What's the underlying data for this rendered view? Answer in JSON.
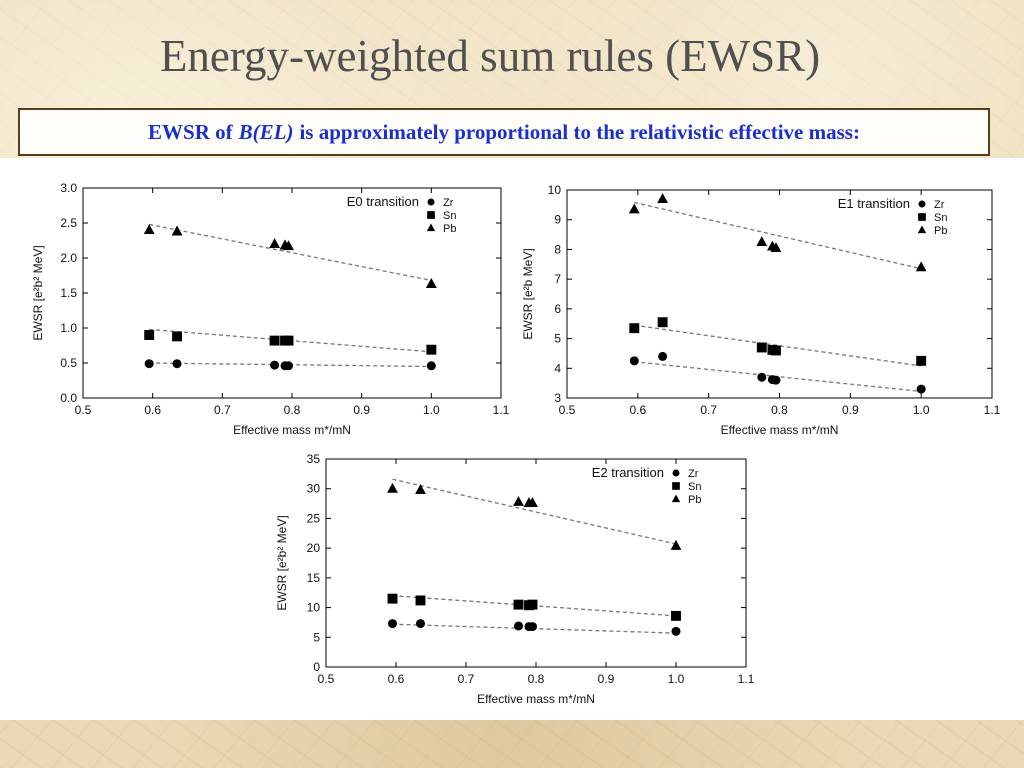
{
  "slide": {
    "title": "Energy-weighted sum rules (EWSR)",
    "subtitle_pre": "EWSR of",
    "subtitle_italic": "B(EL)",
    "subtitle_post": "is approximately proportional to the relativistic effective mass:",
    "subtitle_color": "#1a2fd0"
  },
  "chart_data": [
    {
      "type": "scatter",
      "annotation": "E0 transition",
      "xlabel": "Effective mass m*/mN",
      "ylabel": "EWSR [e²b² MeV]",
      "xlim": [
        0.5,
        1.1
      ],
      "ylim": [
        0,
        3.0
      ],
      "xticks": [
        0.5,
        0.6,
        0.7,
        0.8,
        0.9,
        1.0,
        1.1
      ],
      "yticks": [
        0.0,
        0.5,
        1.0,
        1.5,
        2.0,
        2.5,
        3.0
      ],
      "tick_decimals": 1,
      "grid": false,
      "legend": "top-right",
      "series": [
        {
          "name": "Zr",
          "marker": "circle",
          "x": [
            0.595,
            0.635,
            0.775,
            0.79,
            0.795,
            1.0
          ],
          "y": [
            0.49,
            0.49,
            0.47,
            0.46,
            0.46,
            0.46
          ],
          "fit": [
            [
              0.595,
              0.5
            ],
            [
              1.0,
              0.45
            ]
          ]
        },
        {
          "name": "Sn",
          "marker": "square",
          "x": [
            0.595,
            0.635,
            0.775,
            0.79,
            0.795,
            1.0
          ],
          "y": [
            0.9,
            0.88,
            0.82,
            0.82,
            0.82,
            0.69
          ],
          "fit": [
            [
              0.595,
              0.98
            ],
            [
              1.0,
              0.66
            ]
          ]
        },
        {
          "name": "Pb",
          "marker": "triangle",
          "x": [
            0.595,
            0.635,
            0.775,
            0.79,
            0.795,
            1.0
          ],
          "y": [
            2.4,
            2.38,
            2.2,
            2.18,
            2.17,
            1.63
          ],
          "fit": [
            [
              0.595,
              2.48
            ],
            [
              1.0,
              1.68
            ]
          ]
        }
      ]
    },
    {
      "type": "scatter",
      "annotation": "E1 transition",
      "xlabel": "Effective mass m*/mN",
      "ylabel": "EWSR [e²b MeV]",
      "xlim": [
        0.5,
        1.1
      ],
      "ylim": [
        3,
        10
      ],
      "xticks": [
        0.5,
        0.6,
        0.7,
        0.8,
        0.9,
        1.0,
        1.1
      ],
      "yticks": [
        3,
        4,
        5,
        6,
        7,
        8,
        9,
        10
      ],
      "tick_decimals": 0,
      "grid": false,
      "legend": "top-right",
      "series": [
        {
          "name": "Zr",
          "marker": "circle",
          "x": [
            0.595,
            0.635,
            0.775,
            0.79,
            0.795,
            1.0
          ],
          "y": [
            4.25,
            4.4,
            3.7,
            3.62,
            3.6,
            3.3
          ],
          "fit": [
            [
              0.595,
              4.22
            ],
            [
              1.0,
              3.22
            ]
          ]
        },
        {
          "name": "Sn",
          "marker": "square",
          "x": [
            0.595,
            0.635,
            0.775,
            0.79,
            0.795,
            1.0
          ],
          "y": [
            5.35,
            5.55,
            4.7,
            4.62,
            4.6,
            4.25
          ],
          "fit": [
            [
              0.595,
              5.45
            ],
            [
              1.0,
              4.08
            ]
          ]
        },
        {
          "name": "Pb",
          "marker": "triangle",
          "x": [
            0.595,
            0.635,
            0.775,
            0.79,
            0.795,
            1.0
          ],
          "y": [
            9.35,
            9.7,
            8.25,
            8.1,
            8.05,
            7.4
          ],
          "fit": [
            [
              0.595,
              9.58
            ],
            [
              1.0,
              7.35
            ]
          ]
        }
      ]
    },
    {
      "type": "scatter",
      "annotation": "E2 transition",
      "xlabel": "Effective mass m*/mN",
      "ylabel": "EWSR [e²b² MeV]",
      "xlim": [
        0.5,
        1.1
      ],
      "ylim": [
        0,
        35
      ],
      "xticks": [
        0.5,
        0.6,
        0.7,
        0.8,
        0.9,
        1.0,
        1.1
      ],
      "yticks": [
        0,
        5,
        10,
        15,
        20,
        25,
        30,
        35
      ],
      "tick_decimals": 0,
      "grid": false,
      "legend": "top-right",
      "series": [
        {
          "name": "Zr",
          "marker": "circle",
          "x": [
            0.595,
            0.635,
            0.775,
            0.79,
            0.795,
            1.0
          ],
          "y": [
            7.3,
            7.3,
            6.9,
            6.8,
            6.8,
            6.0
          ],
          "fit": [
            [
              0.595,
              7.2
            ],
            [
              1.0,
              5.7
            ]
          ]
        },
        {
          "name": "Sn",
          "marker": "square",
          "x": [
            0.595,
            0.635,
            0.775,
            0.79,
            0.795,
            1.0
          ],
          "y": [
            11.5,
            11.2,
            10.5,
            10.4,
            10.5,
            8.6
          ],
          "fit": [
            [
              0.595,
              12.0
            ],
            [
              1.0,
              8.6
            ]
          ]
        },
        {
          "name": "Pb",
          "marker": "triangle",
          "x": [
            0.595,
            0.635,
            0.775,
            0.79,
            0.795,
            1.0
          ],
          "y": [
            30.0,
            29.8,
            27.8,
            27.6,
            27.6,
            20.4
          ],
          "fit": [
            [
              0.595,
              31.6
            ],
            [
              1.0,
              20.7
            ]
          ]
        }
      ]
    }
  ]
}
